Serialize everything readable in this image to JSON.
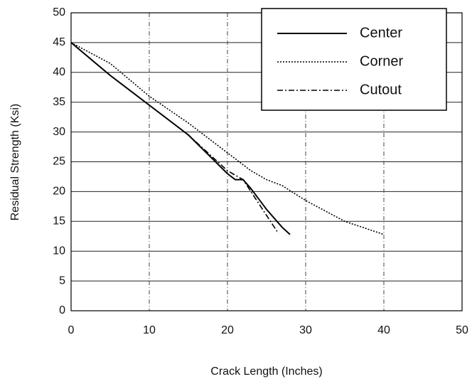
{
  "chart_data": {
    "type": "line",
    "xlabel": "Crack Length (Inches)",
    "ylabel": "Residual Strength (Ksi)",
    "xlim": [
      0,
      50
    ],
    "xticks": [
      0,
      10,
      20,
      30,
      40,
      50
    ],
    "ylim": [
      0,
      50
    ],
    "yticks": [
      0,
      5,
      10,
      15,
      20,
      25,
      30,
      35,
      40,
      45,
      50
    ],
    "grid": true,
    "legend": "upper right",
    "series": [
      {
        "name": "Center",
        "color": "#000000",
        "style": "solid",
        "x": [
          0,
          5,
          10,
          15,
          20,
          21,
          22,
          23,
          25,
          27,
          28
        ],
        "values": [
          45,
          39.5,
          34.5,
          29.5,
          23,
          22,
          22,
          20.5,
          17,
          14,
          12.8
        ]
      },
      {
        "name": "Corner",
        "color": "#000000",
        "style": "dotted",
        "x": [
          0,
          5,
          10,
          15,
          20,
          23,
          25,
          27,
          30,
          35,
          40
        ],
        "values": [
          45,
          41.5,
          36,
          31.5,
          26.5,
          23.5,
          22,
          21,
          18.5,
          15,
          12.8
        ]
      },
      {
        "name": "Cutout",
        "color": "#000000",
        "style": "dashdot",
        "x": [
          0,
          5,
          10,
          15,
          20,
          22,
          24,
          26.5
        ],
        "values": [
          45,
          39.5,
          34.5,
          29.5,
          23.5,
          22,
          18,
          13
        ]
      }
    ]
  }
}
